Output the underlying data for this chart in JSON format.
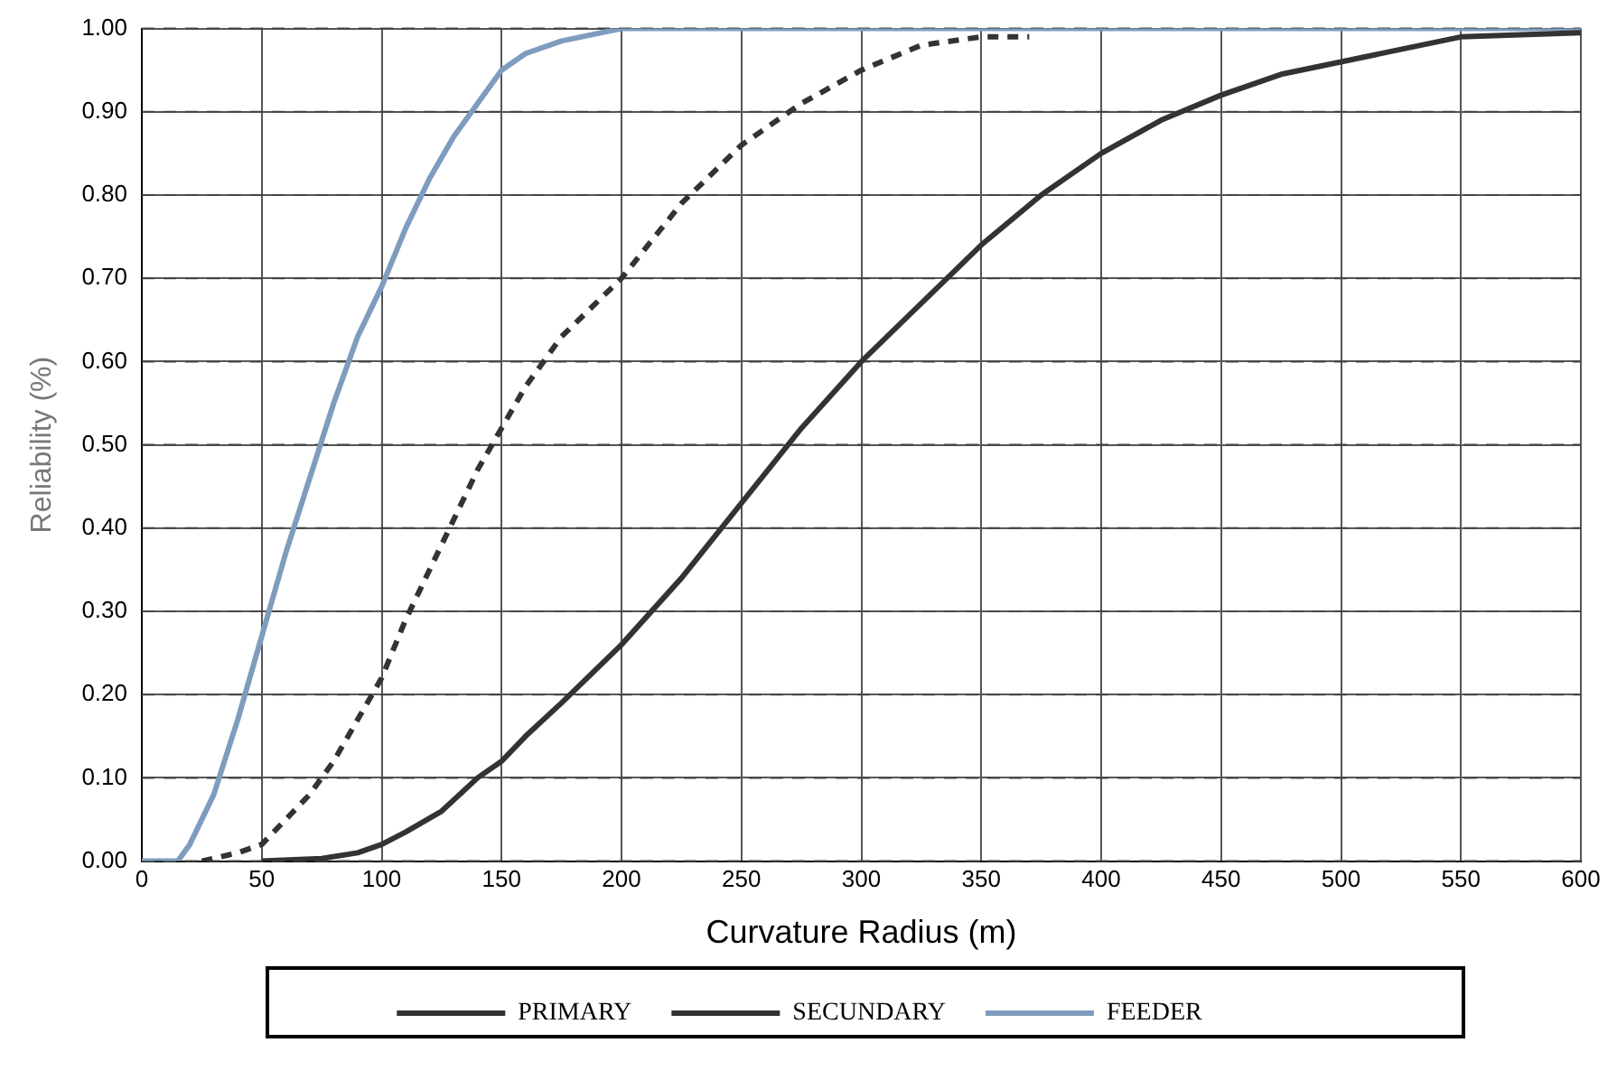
{
  "chart_data": {
    "type": "line",
    "xlabel": "Curvature Radius (m)",
    "ylabel": "Reliability (%)",
    "xlim": [
      0,
      600
    ],
    "xticks": [
      0,
      50,
      100,
      150,
      200,
      250,
      300,
      350,
      400,
      450,
      500,
      550,
      600
    ],
    "ylim": [
      0,
      1
    ],
    "yticks": [
      {
        "value": 0,
        "label": "0.00"
      },
      {
        "value": 0.1,
        "label": "0.10"
      },
      {
        "value": 0.2,
        "label": "0.20"
      },
      {
        "value": 0.3,
        "label": "0.30"
      },
      {
        "value": 0.4,
        "label": "0.40"
      },
      {
        "value": 0.5,
        "label": "0.50"
      },
      {
        "value": 0.6,
        "label": "0.60"
      },
      {
        "value": 0.7,
        "label": "0.70"
      },
      {
        "value": 0.8,
        "label": "0.80"
      },
      {
        "value": 0.9,
        "label": "0.90"
      },
      {
        "value": 1,
        "label": "1.00"
      }
    ],
    "grid": true,
    "legend": "bottom",
    "marker": "none",
    "series": [
      {
        "name": "PRIMARY",
        "color": "#333333",
        "line_style": "solid",
        "x": [
          50,
          75,
          90,
          100,
          110,
          125,
          140,
          150,
          160,
          175,
          200,
          225,
          250,
          275,
          300,
          325,
          350,
          375,
          400,
          425,
          450,
          475,
          500,
          525,
          550,
          600
        ],
        "values": [
          0,
          0.003,
          0.01,
          0.02,
          0.035,
          0.06,
          0.1,
          0.12,
          0.15,
          0.19,
          0.26,
          0.34,
          0.43,
          0.52,
          0.6,
          0.67,
          0.74,
          0.8,
          0.85,
          0.89,
          0.92,
          0.945,
          0.96,
          0.975,
          0.99,
          0.995
        ]
      },
      {
        "name": "SECUNDARY",
        "color": "#333333",
        "line_style": "dashed",
        "x": [
          25,
          40,
          50,
          60,
          70,
          80,
          90,
          100,
          110,
          120,
          130,
          140,
          150,
          160,
          175,
          200,
          225,
          250,
          275,
          300,
          325,
          350,
          370
        ],
        "values": [
          0,
          0.01,
          0.02,
          0.05,
          0.08,
          0.12,
          0.17,
          0.22,
          0.29,
          0.35,
          0.41,
          0.47,
          0.52,
          0.57,
          0.63,
          0.7,
          0.79,
          0.86,
          0.91,
          0.95,
          0.98,
          0.99,
          0.99
        ]
      },
      {
        "name": "FEEDER",
        "color": "#7f9cbf",
        "line_style": "solid",
        "x": [
          0,
          15,
          20,
          30,
          40,
          50,
          60,
          70,
          80,
          90,
          100,
          110,
          120,
          130,
          140,
          150,
          160,
          175,
          200,
          600
        ],
        "values": [
          0,
          0,
          0.02,
          0.08,
          0.17,
          0.27,
          0.37,
          0.46,
          0.55,
          0.63,
          0.69,
          0.76,
          0.82,
          0.87,
          0.91,
          0.95,
          0.97,
          0.985,
          1,
          1
        ]
      }
    ]
  }
}
